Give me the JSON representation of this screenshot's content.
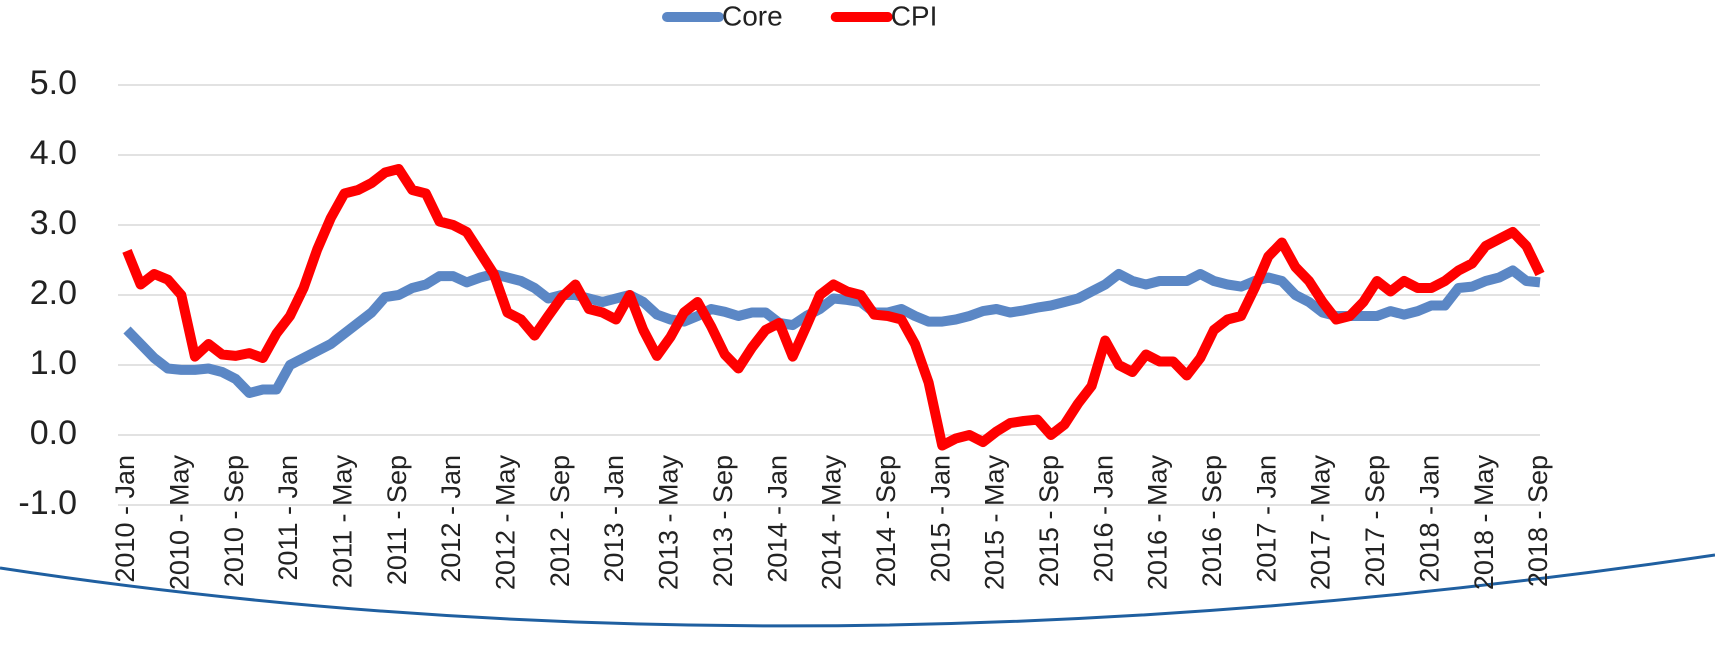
{
  "chart_data": {
    "type": "line",
    "categories": [
      "2010 - Jan",
      null,
      null,
      null,
      "2010 - May",
      null,
      null,
      null,
      "2010 - Sep",
      null,
      null,
      null,
      "2011 - Jan",
      null,
      null,
      null,
      "2011 - May",
      null,
      null,
      null,
      "2011 - Sep",
      null,
      null,
      null,
      "2012 - Jan",
      null,
      null,
      null,
      "2012 - May",
      null,
      null,
      null,
      "2012 - Sep",
      null,
      null,
      null,
      "2013 - Jan",
      null,
      null,
      null,
      "2013 - May",
      null,
      null,
      null,
      "2013 - Sep",
      null,
      null,
      null,
      "2014 - Jan",
      null,
      null,
      null,
      "2014 - May",
      null,
      null,
      null,
      "2014 - Sep",
      null,
      null,
      null,
      "2015 - Jan",
      null,
      null,
      null,
      "2015 - May",
      null,
      null,
      null,
      "2015 - Sep",
      null,
      null,
      null,
      "2016 - Jan",
      null,
      null,
      null,
      "2016 - May",
      null,
      null,
      null,
      "2016 - Sep",
      null,
      null,
      null,
      "2017 - Jan",
      null,
      null,
      null,
      "2017 - May",
      null,
      null,
      null,
      "2017 - Sep",
      null,
      null,
      null,
      "2018 - Jan",
      null,
      null,
      null,
      "2018 - May",
      null,
      null,
      null,
      "2018 - Sep"
    ],
    "series": [
      {
        "name": "Core",
        "color": "#5b87c5",
        "values": [
          1.5,
          1.3,
          1.1,
          0.95,
          0.93,
          0.93,
          0.95,
          0.9,
          0.8,
          0.6,
          0.65,
          0.65,
          1.0,
          1.1,
          1.2,
          1.3,
          1.45,
          1.6,
          1.75,
          1.97,
          2.0,
          2.1,
          2.15,
          2.27,
          2.27,
          2.18,
          2.25,
          2.3,
          2.25,
          2.2,
          2.1,
          1.95,
          2.0,
          2.0,
          1.95,
          1.9,
          1.95,
          2.0,
          1.9,
          1.72,
          1.65,
          1.62,
          1.7,
          1.8,
          1.76,
          1.7,
          1.75,
          1.75,
          1.6,
          1.57,
          1.7,
          1.8,
          1.95,
          1.93,
          1.9,
          1.75,
          1.75,
          1.8,
          1.7,
          1.62,
          1.62,
          1.65,
          1.7,
          1.77,
          1.8,
          1.75,
          1.78,
          1.82,
          1.85,
          1.9,
          1.95,
          2.05,
          2.15,
          2.3,
          2.2,
          2.15,
          2.2,
          2.2,
          2.2,
          2.3,
          2.2,
          2.15,
          2.12,
          2.2,
          2.25,
          2.2,
          2.0,
          1.9,
          1.75,
          1.7,
          1.7,
          1.7,
          1.7,
          1.77,
          1.72,
          1.77,
          1.85,
          1.85,
          2.1,
          2.12,
          2.2,
          2.25,
          2.35,
          2.2,
          2.18
        ]
      },
      {
        "name": "CPI",
        "color": "#ff0000",
        "values": [
          2.63,
          2.15,
          2.3,
          2.22,
          2.0,
          1.12,
          1.3,
          1.15,
          1.13,
          1.17,
          1.1,
          1.45,
          1.7,
          2.1,
          2.65,
          3.1,
          3.45,
          3.5,
          3.6,
          3.75,
          3.8,
          3.5,
          3.45,
          3.05,
          3.0,
          2.9,
          2.6,
          2.3,
          1.75,
          1.65,
          1.42,
          1.7,
          1.97,
          2.15,
          1.8,
          1.75,
          1.65,
          2.0,
          1.5,
          1.13,
          1.4,
          1.75,
          1.9,
          1.55,
          1.15,
          0.95,
          1.25,
          1.5,
          1.6,
          1.12,
          1.55,
          2.0,
          2.15,
          2.05,
          2.0,
          1.72,
          1.7,
          1.65,
          1.3,
          0.75,
          -0.15,
          -0.05,
          0.0,
          -0.1,
          0.05,
          0.17,
          0.2,
          0.22,
          0.0,
          0.15,
          0.45,
          0.7,
          1.35,
          1.0,
          0.9,
          1.15,
          1.05,
          1.05,
          0.85,
          1.1,
          1.5,
          1.65,
          1.7,
          2.1,
          2.55,
          2.75,
          2.4,
          2.2,
          1.9,
          1.65,
          1.7,
          1.9,
          2.2,
          2.05,
          2.2,
          2.1,
          2.1,
          2.2,
          2.35,
          2.45,
          2.7,
          2.8,
          2.9,
          2.7,
          2.3
        ]
      }
    ],
    "ylim": [
      -1,
      5
    ],
    "yticks": [
      {
        "value": -1,
        "label": "-1.0"
      },
      {
        "value": 0,
        "label": "0.0"
      },
      {
        "value": 1,
        "label": "1.0"
      },
      {
        "value": 2,
        "label": "2.0"
      },
      {
        "value": 3,
        "label": "3.0"
      },
      {
        "value": 4,
        "label": "4.0"
      },
      {
        "value": 5,
        "label": "5.0"
      }
    ],
    "grid": true,
    "legend": "top"
  }
}
